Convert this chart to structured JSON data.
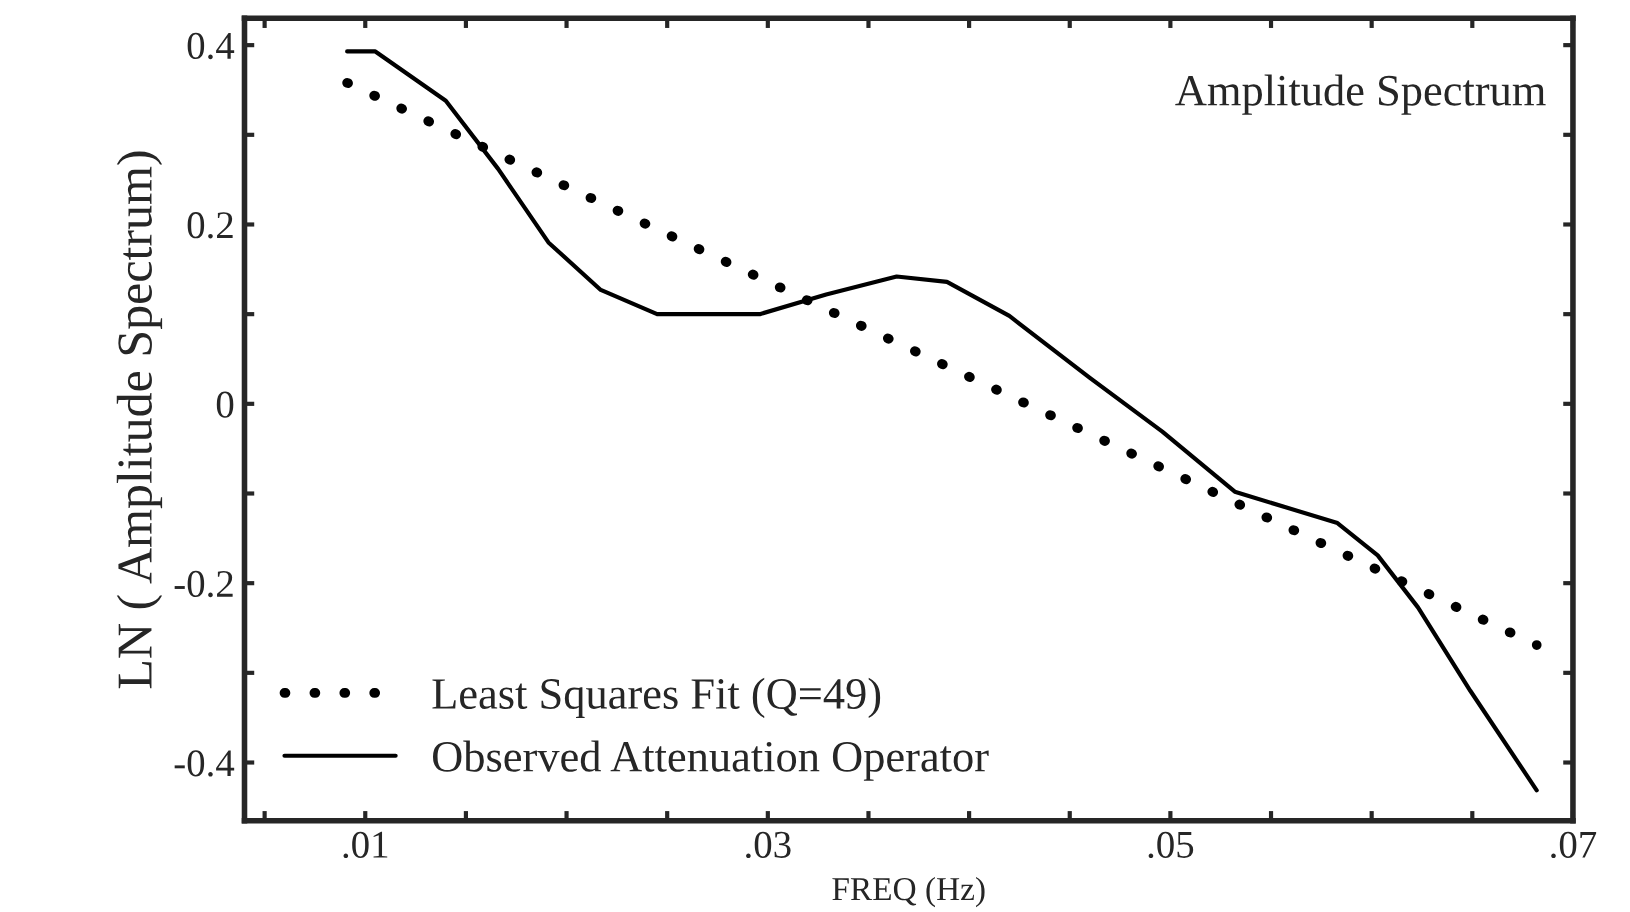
{
  "chart_data": {
    "type": "line",
    "xlabel": "FREQ (Hz)",
    "ylabel": "LN ( Amplitude Spectrum)",
    "annotations": [
      "Amplitude Spectrum"
    ],
    "xlim": [
      0.004,
      0.07
    ],
    "ylim": [
      -0.465,
      0.43
    ],
    "xticks": [
      {
        "value": 0.005,
        "label": null
      },
      {
        "value": 0.01,
        "label": ".01"
      },
      {
        "value": 0.015,
        "label": null
      },
      {
        "value": 0.02,
        "label": null
      },
      {
        "value": 0.025,
        "label": null
      },
      {
        "value": 0.03,
        "label": ".03"
      },
      {
        "value": 0.035,
        "label": null
      },
      {
        "value": 0.04,
        "label": null
      },
      {
        "value": 0.045,
        "label": null
      },
      {
        "value": 0.05,
        "label": ".05"
      },
      {
        "value": 0.055,
        "label": null
      },
      {
        "value": 0.06,
        "label": null
      },
      {
        "value": 0.065,
        "label": null
      },
      {
        "value": 0.07,
        "label": ".07"
      }
    ],
    "yticks": [
      {
        "value": -0.4,
        "label": "-0.4"
      },
      {
        "value": -0.3,
        "label": null
      },
      {
        "value": -0.2,
        "label": "-0.2"
      },
      {
        "value": -0.1,
        "label": null
      },
      {
        "value": 0,
        "label": "0"
      },
      {
        "value": 0.1,
        "label": null
      },
      {
        "value": 0.2,
        "label": "0.2"
      },
      {
        "value": 0.3,
        "label": null
      },
      {
        "value": 0.4,
        "label": "0.4"
      }
    ],
    "grid": false,
    "legend": "bottom left",
    "series": [
      {
        "name": "Least Squares Fit (Q=49)",
        "color": "#000000",
        "line_style": "dotted",
        "x": [
          0.0091,
          0.0682
        ],
        "values": [
          0.358,
          -0.269
        ]
      },
      {
        "name": "Observed Attenuation Operator",
        "color": "#000000",
        "line_style": "solid",
        "x": [
          0.0091,
          0.0105,
          0.014,
          0.0166,
          0.0191,
          0.0217,
          0.0245,
          0.0296,
          0.0329,
          0.0364,
          0.0389,
          0.042,
          0.046,
          0.0496,
          0.0532,
          0.0583,
          0.0603,
          0.0623,
          0.0649,
          0.0682
        ],
        "values": [
          0.393,
          0.393,
          0.338,
          0.262,
          0.18,
          0.127,
          0.1,
          0.1,
          0.122,
          0.142,
          0.136,
          0.098,
          0.029,
          -0.031,
          -0.098,
          -0.133,
          -0.169,
          -0.227,
          -0.32,
          -0.431
        ]
      }
    ]
  }
}
